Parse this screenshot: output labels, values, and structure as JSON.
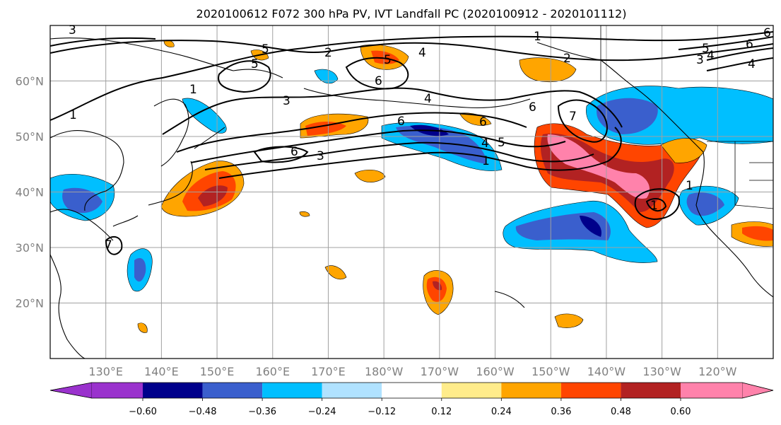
{
  "title": "2020100612 F072 300 hPa PV, IVT Landfall PC (2020100912 - 2020101112)",
  "map": {
    "lat_labels": [
      "60°N",
      "50°N",
      "40°N",
      "30°N",
      "20°N"
    ],
    "lon_labels": [
      "130°E",
      "140°E",
      "150°E",
      "160°E",
      "170°E",
      "180°W",
      "170°W",
      "160°W",
      "150°W",
      "140°W",
      "130°W",
      "120°W"
    ],
    "lat_range": [
      10,
      70
    ],
    "lon_range_east": [
      120,
      250
    ],
    "grid": true
  },
  "contour_labels": [
    "3",
    "2",
    "1",
    "6",
    "5",
    "6",
    "4",
    "6",
    "1",
    "2",
    "6",
    "5",
    "4",
    "1",
    "6",
    "3",
    "7",
    "4",
    "5",
    "1",
    "3",
    "6",
    "5",
    "4",
    "3",
    "1",
    "5",
    "6",
    "4",
    "1",
    "7"
  ],
  "colorbar": {
    "tick_labels": [
      "−0.60",
      "−0.48",
      "−0.36",
      "−0.24",
      "−0.12",
      "0.12",
      "0.24",
      "0.36",
      "0.48",
      "0.60"
    ],
    "colors": [
      "#9a32cd",
      "#00008b",
      "#3a5fcd",
      "#00bfff",
      "#b0e2ff",
      "#ffffff",
      "#ffec8b",
      "#ffa500",
      "#ff4500",
      "#b22222",
      "#ff82ab"
    ]
  },
  "field_colors": {
    "neg_light": "#b0e2ff",
    "neg_mid": "#00bfff",
    "neg_strong": "#3a5fcd",
    "neg_max": "#00008b",
    "pos_light": "#ffec8b",
    "pos_mid": "#ffa500",
    "pos_strong": "#ff4500",
    "pos_dark": "#b22222",
    "pos_max": "#ff82ab"
  }
}
